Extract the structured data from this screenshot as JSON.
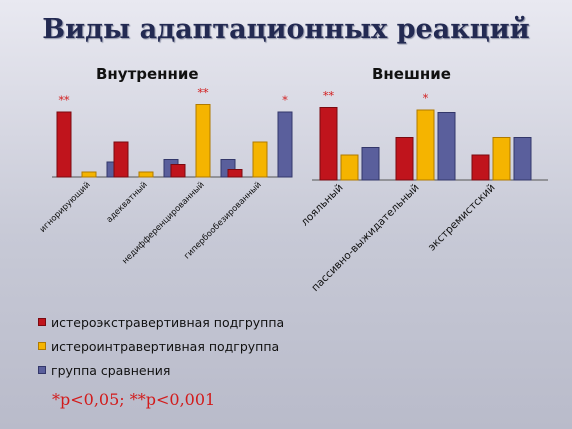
{
  "title": "Виды адаптационных реакций",
  "colors": {
    "series1": "#c0141c",
    "series2": "#f5b400",
    "series3": "#5a5f9c",
    "star": "#d21b1b",
    "axis": "#555555"
  },
  "chart_data": [
    {
      "type": "bar",
      "title": "Внутренние",
      "categories": [
        "игнорирующий",
        "адекватный",
        "недифференцированный",
        "гипербообезированный"
      ],
      "series": [
        {
          "name": "истероэкстравертивная подгруппа",
          "values": [
            26,
            14,
            5,
            3
          ]
        },
        {
          "name": "истероинтравертивная подгруппа",
          "values": [
            2,
            2,
            29,
            14
          ]
        },
        {
          "name": "группа сравнения",
          "values": [
            6,
            7,
            7,
            26
          ]
        }
      ],
      "significance": [
        "**",
        "",
        "**",
        "*"
      ],
      "grid": false,
      "legend": "bottom-left"
    },
    {
      "type": "bar",
      "title": "Внешние",
      "categories": [
        "лояльный",
        "пассивно-выжидательный",
        "экстремистский"
      ],
      "series": [
        {
          "name": "истероэкстравертивная подгруппа",
          "values": [
            29,
            17,
            10
          ]
        },
        {
          "name": "истероинтравертивная подгруппа",
          "values": [
            10,
            28,
            17
          ]
        },
        {
          "name": "группа сравнения",
          "values": [
            13,
            27,
            17
          ]
        }
      ],
      "significance": [
        "**",
        "*",
        ""
      ],
      "grid": false,
      "legend": "bottom-left"
    }
  ],
  "footnote": "*p<0,05; **p<0,001"
}
